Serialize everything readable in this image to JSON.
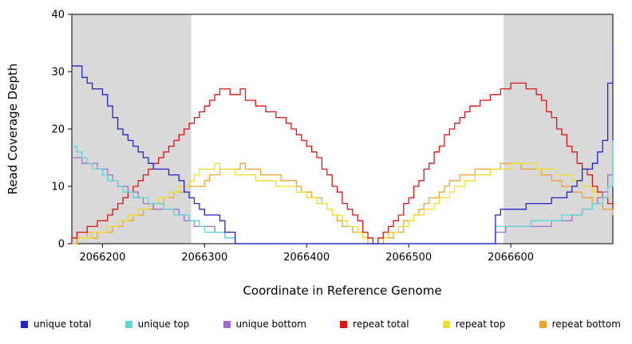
{
  "chart_data": {
    "type": "line",
    "title": "",
    "xlabel": "Coordinate in Reference Genome",
    "ylabel": "Read Coverage Depth",
    "xlim": [
      2066170,
      2066700
    ],
    "ylim": [
      0,
      40
    ],
    "xticks": [
      2066200,
      2066300,
      2066400,
      2066500,
      2066600
    ],
    "yticks": [
      0,
      10,
      20,
      30,
      40
    ],
    "grid": false,
    "legend_position": "bottom",
    "interpolation": "step-after",
    "x_start": 2066170,
    "x_step": 5,
    "plot_background": "#ffffff",
    "shaded_regions": [
      {
        "x0": 2066170,
        "x1": 2066287,
        "color": "#d9d9d9"
      },
      {
        "x0": 2066593,
        "x1": 2066700,
        "color": "#d9d9d9"
      }
    ],
    "series": [
      {
        "name": "unique total",
        "color": "#2222cc",
        "values": [
          31,
          31,
          29,
          28,
          27,
          27,
          26,
          24,
          22,
          20,
          19,
          18,
          17,
          16,
          15,
          14,
          13,
          13,
          13,
          12,
          12,
          11,
          9,
          8,
          7,
          6,
          5,
          5,
          5,
          4,
          2,
          2,
          0,
          0,
          0,
          0,
          0,
          0,
          0,
          0,
          0,
          0,
          0,
          0,
          0,
          0,
          0,
          0,
          0,
          0,
          0,
          0,
          0,
          0,
          0,
          0,
          0,
          0,
          0,
          0,
          0,
          0,
          0,
          0,
          0,
          0,
          0,
          0,
          0,
          0,
          0,
          0,
          0,
          0,
          0,
          0,
          0,
          0,
          0,
          0,
          0,
          0,
          0,
          5,
          6,
          6,
          6,
          6,
          6,
          7,
          7,
          7,
          7,
          7,
          8,
          8,
          8,
          9,
          10,
          11,
          13,
          13,
          14,
          16,
          18,
          28,
          35
        ]
      },
      {
        "name": "unique top",
        "color": "#55d8d8",
        "values": [
          17,
          16,
          15,
          14,
          13,
          13,
          12,
          11,
          11,
          10,
          9,
          9,
          8,
          8,
          8,
          7,
          7,
          7,
          6,
          6,
          5,
          5,
          5,
          4,
          4,
          3,
          2,
          2,
          2,
          2,
          1,
          1,
          0,
          0,
          0,
          0,
          0,
          0,
          0,
          0,
          0,
          0,
          0,
          0,
          0,
          0,
          0,
          0,
          0,
          0,
          0,
          0,
          0,
          0,
          0,
          0,
          0,
          0,
          0,
          0,
          0,
          0,
          0,
          0,
          0,
          0,
          0,
          0,
          0,
          0,
          0,
          0,
          0,
          0,
          0,
          0,
          0,
          0,
          0,
          0,
          0,
          0,
          0,
          3,
          3,
          3,
          3,
          3,
          3,
          3,
          4,
          4,
          4,
          4,
          4,
          4,
          5,
          5,
          5,
          5,
          6,
          6,
          7,
          7,
          8,
          10,
          18
        ]
      },
      {
        "name": "unique bottom",
        "color": "#a36bcf",
        "values": [
          15,
          15,
          14,
          14,
          14,
          13,
          13,
          12,
          11,
          10,
          10,
          9,
          9,
          8,
          7,
          7,
          6,
          6,
          6,
          6,
          6,
          5,
          4,
          4,
          3,
          3,
          3,
          3,
          2,
          2,
          1,
          1,
          0,
          0,
          0,
          0,
          0,
          0,
          0,
          0,
          0,
          0,
          0,
          0,
          0,
          0,
          0,
          0,
          0,
          0,
          0,
          0,
          0,
          0,
          0,
          0,
          0,
          0,
          0,
          0,
          0,
          0,
          0,
          0,
          0,
          0,
          0,
          0,
          0,
          0,
          0,
          0,
          0,
          0,
          0,
          0,
          0,
          0,
          0,
          0,
          0,
          0,
          0,
          2,
          2,
          3,
          3,
          3,
          3,
          3,
          3,
          3,
          3,
          3,
          4,
          4,
          4,
          4,
          5,
          5,
          6,
          6,
          7,
          8,
          9,
          12,
          17
        ]
      },
      {
        "name": "repeat total",
        "color": "#e01212",
        "values": [
          1,
          2,
          2,
          3,
          3,
          4,
          4,
          5,
          6,
          7,
          8,
          9,
          10,
          11,
          12,
          13,
          14,
          15,
          16,
          17,
          18,
          19,
          20,
          21,
          22,
          23,
          24,
          25,
          26,
          27,
          27,
          26,
          26,
          27,
          25,
          25,
          24,
          24,
          23,
          23,
          22,
          22,
          21,
          20,
          19,
          18,
          17,
          16,
          15,
          13,
          12,
          10,
          9,
          7,
          6,
          5,
          4,
          2,
          1,
          0,
          1,
          2,
          3,
          4,
          5,
          7,
          8,
          10,
          11,
          13,
          14,
          16,
          17,
          19,
          20,
          21,
          22,
          23,
          24,
          24,
          25,
          25,
          26,
          26,
          27,
          27,
          28,
          28,
          28,
          27,
          27,
          26,
          25,
          23,
          22,
          20,
          19,
          17,
          16,
          14,
          13,
          12,
          10,
          9,
          8,
          7,
          6
        ]
      },
      {
        "name": "repeat top",
        "color": "#efdf20",
        "values": [
          1,
          1,
          1,
          1,
          2,
          2,
          2,
          3,
          3,
          4,
          4,
          5,
          5,
          6,
          6,
          7,
          7,
          8,
          8,
          9,
          9,
          10,
          10,
          11,
          12,
          13,
          13,
          13,
          14,
          13,
          13,
          13,
          12,
          12,
          12,
          12,
          11,
          11,
          11,
          11,
          10,
          10,
          10,
          10,
          9,
          9,
          8,
          8,
          7,
          7,
          6,
          5,
          5,
          4,
          3,
          3,
          2,
          1,
          1,
          0,
          1,
          1,
          2,
          2,
          3,
          3,
          4,
          5,
          5,
          6,
          6,
          7,
          8,
          8,
          9,
          10,
          10,
          11,
          11,
          12,
          12,
          12,
          13,
          13,
          13,
          13,
          14,
          14,
          14,
          14,
          14,
          13,
          13,
          13,
          13,
          12,
          12,
          12,
          11,
          11,
          10,
          10,
          9,
          8,
          8,
          7,
          6
        ]
      },
      {
        "name": "repeat bottom",
        "color": "#f0a22a",
        "values": [
          0,
          1,
          1,
          2,
          1,
          2,
          2,
          2,
          3,
          3,
          4,
          4,
          5,
          5,
          6,
          6,
          7,
          7,
          8,
          8,
          9,
          9,
          10,
          10,
          10,
          10,
          11,
          12,
          12,
          13,
          13,
          13,
          13,
          14,
          13,
          13,
          13,
          12,
          12,
          12,
          12,
          11,
          11,
          11,
          10,
          9,
          9,
          8,
          8,
          7,
          6,
          5,
          4,
          3,
          3,
          2,
          2,
          1,
          0,
          0,
          0,
          1,
          1,
          2,
          2,
          4,
          4,
          5,
          6,
          7,
          8,
          8,
          9,
          10,
          11,
          11,
          12,
          12,
          12,
          13,
          13,
          13,
          13,
          13,
          14,
          14,
          14,
          14,
          13,
          13,
          13,
          13,
          12,
          12,
          11,
          11,
          10,
          10,
          9,
          9,
          8,
          8,
          7,
          7,
          6,
          6,
          5
        ]
      }
    ]
  }
}
